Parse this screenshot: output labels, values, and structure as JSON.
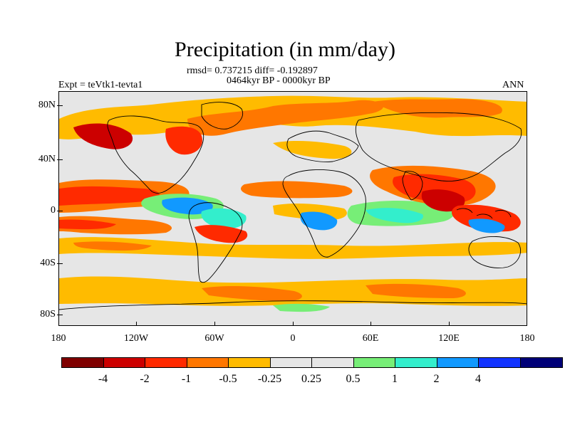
{
  "title": "Precipitation (in mm/day)",
  "stats_line": "rmsd= 0.737215 diff= -0.192897",
  "period_line": "0464kyr BP - 0000kyr BP",
  "experiment": "Expt = teVtk1-tevta1",
  "season": "ANN",
  "lat_labels": [
    "80N",
    "40N",
    "0",
    "40S",
    "80S"
  ],
  "lon_labels": [
    "180",
    "120W",
    "60W",
    "0",
    "60E",
    "120E",
    "180"
  ],
  "colorbar": {
    "colors": [
      "#7f0000",
      "#cc0000",
      "#ff2a00",
      "#ff7700",
      "#ffbb00",
      "#e6e6e6",
      "#e6e6e6",
      "#77ee77",
      "#33eecc",
      "#1199ff",
      "#1133ff",
      "#000077"
    ],
    "labels": [
      "-4",
      "-2",
      "-1",
      "-0.5",
      "-0.25",
      "0.25",
      "0.5",
      "1",
      "2",
      "4"
    ]
  },
  "colors": {
    "strong_dry": "#cc0000",
    "dry": "#ff2a00",
    "mid_dry": "#ff7700",
    "weak_dry": "#ffbb00",
    "neutral": "#e6e6e6",
    "weak_wet": "#77ee77",
    "mid_wet": "#33eecc",
    "wet": "#1199ff",
    "strong_wet": "#1133ff"
  }
}
